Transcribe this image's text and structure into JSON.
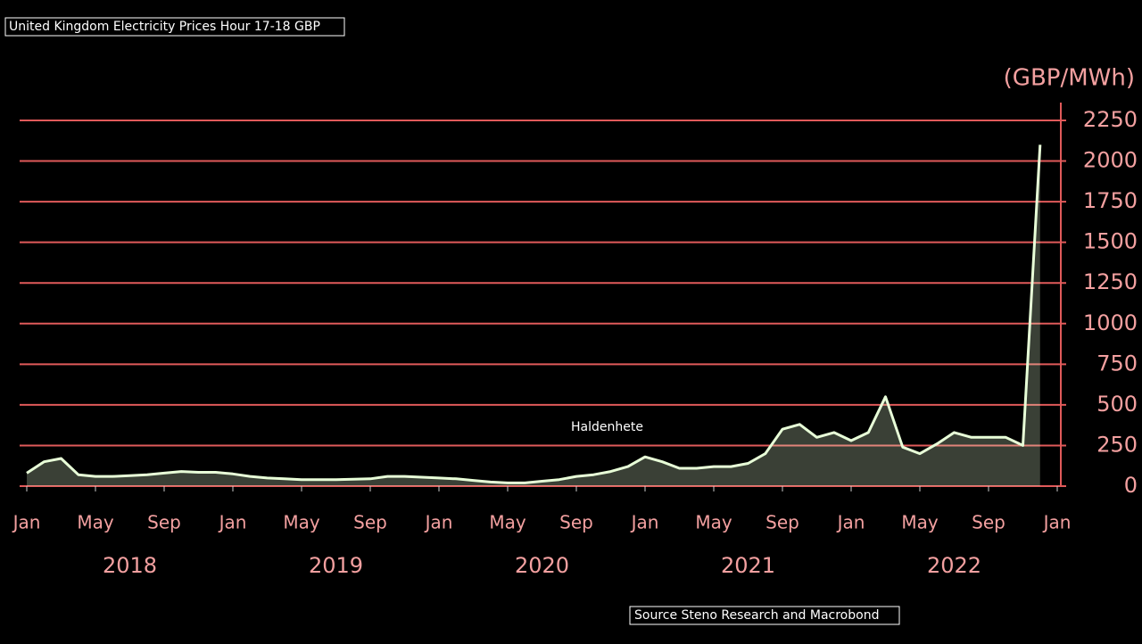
{
  "chart_data": {
    "type": "line",
    "title": "United Kingdom Electricity Prices Hour 17-18 GBP",
    "y_axis_label": "(GBP/MWh)",
    "annotation": "Haldenhete",
    "source": "Source Steno Research and Macrobond",
    "x": [
      "2018-01",
      "2018-02",
      "2018-03",
      "2018-04",
      "2018-05",
      "2018-06",
      "2018-07",
      "2018-08",
      "2018-09",
      "2018-10",
      "2018-11",
      "2018-12",
      "2019-01",
      "2019-02",
      "2019-03",
      "2019-04",
      "2019-05",
      "2019-06",
      "2019-07",
      "2019-08",
      "2019-09",
      "2019-10",
      "2019-11",
      "2019-12",
      "2020-01",
      "2020-02",
      "2020-03",
      "2020-04",
      "2020-05",
      "2020-06",
      "2020-07",
      "2020-08",
      "2020-09",
      "2020-10",
      "2020-11",
      "2020-12",
      "2021-01",
      "2021-02",
      "2021-03",
      "2021-04",
      "2021-05",
      "2021-06",
      "2021-07",
      "2021-08",
      "2021-09",
      "2021-10",
      "2021-11",
      "2021-12",
      "2022-01",
      "2022-02",
      "2022-03",
      "2022-04",
      "2022-05",
      "2022-06",
      "2022-07",
      "2022-08",
      "2022-09",
      "2022-10",
      "2022-11",
      "2022-12"
    ],
    "series": [
      {
        "name": "United Kingdom Electricity Prices Hour 17-18 GBP",
        "color": "#e8ffd8",
        "values": [
          80,
          150,
          170,
          70,
          60,
          60,
          65,
          70,
          80,
          90,
          85,
          85,
          75,
          60,
          50,
          45,
          40,
          40,
          40,
          42,
          45,
          60,
          60,
          55,
          50,
          45,
          35,
          25,
          20,
          20,
          30,
          40,
          60,
          70,
          90,
          120,
          180,
          150,
          110,
          110,
          120,
          120,
          140,
          200,
          350,
          380,
          300,
          330,
          280,
          330,
          550,
          240,
          200,
          260,
          330,
          300,
          300,
          300,
          250,
          2100
        ]
      }
    ],
    "xlim": [
      "2018-01",
      "2023-01"
    ],
    "xticks": [
      {
        "value": "2018-01",
        "label": "Jan"
      },
      {
        "value": "2018-05",
        "label": "May"
      },
      {
        "value": "2018-09",
        "label": "Sep"
      },
      {
        "value": "2019-01",
        "label": "Jan"
      },
      {
        "value": "2019-05",
        "label": "May"
      },
      {
        "value": "2019-09",
        "label": "Sep"
      },
      {
        "value": "2020-01",
        "label": "Jan"
      },
      {
        "value": "2020-05",
        "label": "May"
      },
      {
        "value": "2020-09",
        "label": "Sep"
      },
      {
        "value": "2021-01",
        "label": "Jan"
      },
      {
        "value": "2021-05",
        "label": "May"
      },
      {
        "value": "2021-09",
        "label": "Sep"
      },
      {
        "value": "2022-01",
        "label": "Jan"
      },
      {
        "value": "2022-05",
        "label": "May"
      },
      {
        "value": "2022-09",
        "label": "Sep"
      },
      {
        "value": "2023-01",
        "label": "Jan"
      }
    ],
    "year_labels": [
      {
        "value": "2018-07",
        "label": "2018"
      },
      {
        "value": "2019-07",
        "label": "2019"
      },
      {
        "value": "2020-07",
        "label": "2020"
      },
      {
        "value": "2021-07",
        "label": "2021"
      },
      {
        "value": "2022-07",
        "label": "2022"
      }
    ],
    "ylim": [
      0,
      2250
    ],
    "yticks": [
      0,
      250,
      500,
      750,
      1000,
      1250,
      1500,
      1750,
      2000,
      2250
    ],
    "grid": true,
    "grid_color": "#e05a5a",
    "axis_side": "right"
  }
}
